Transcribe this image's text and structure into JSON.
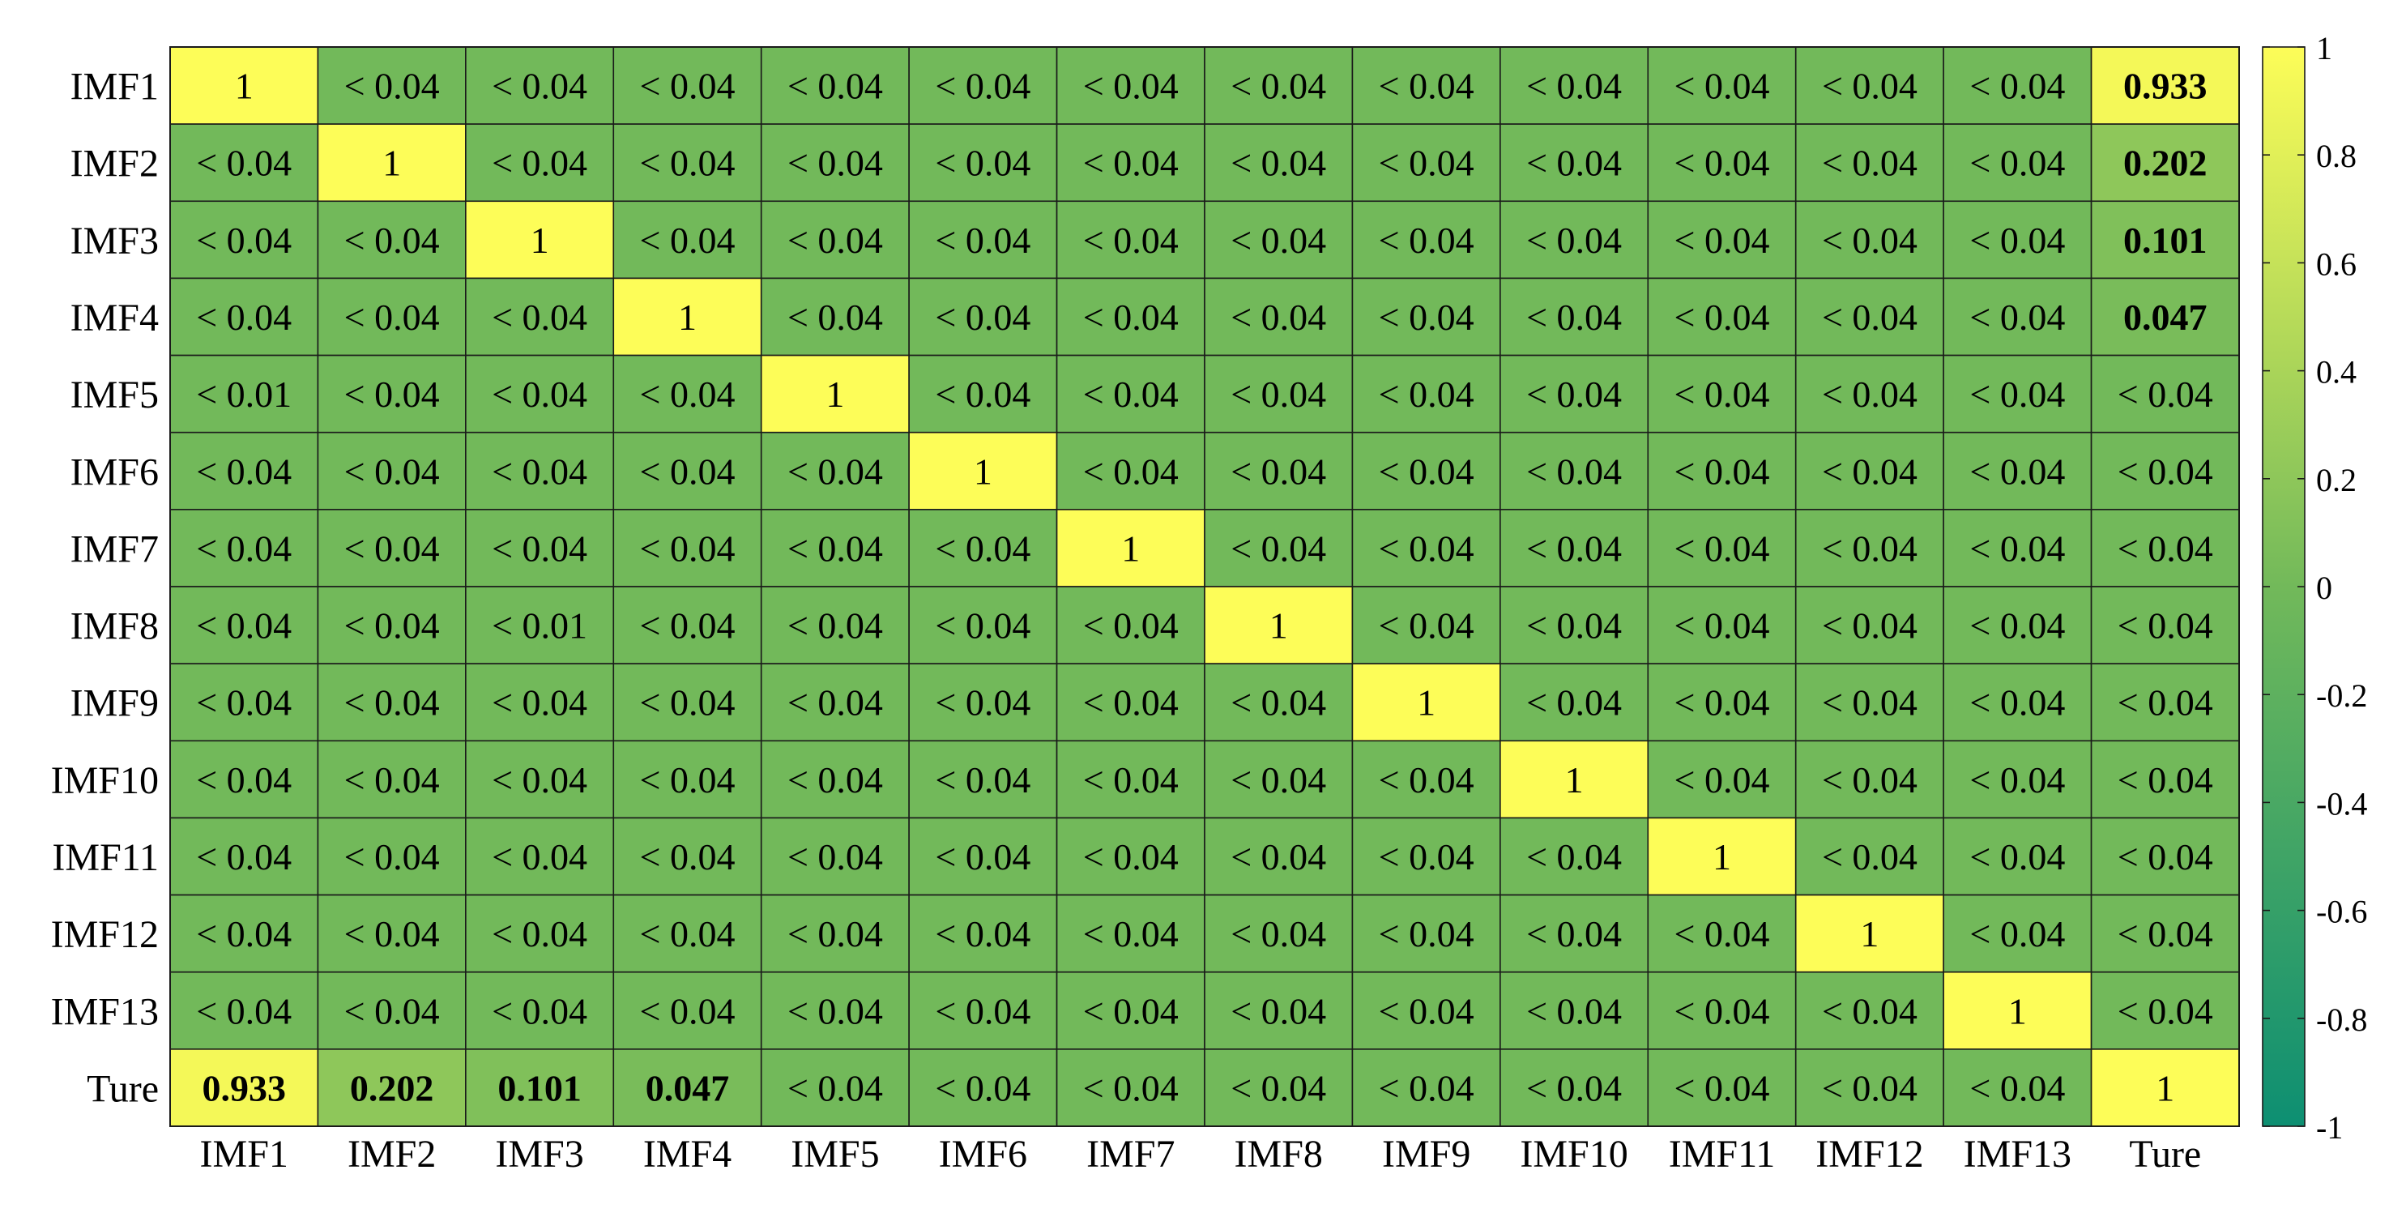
{
  "chart_data": {
    "type": "heatmap",
    "title": "",
    "xlabel": "",
    "ylabel": "",
    "rows": [
      "IMF1",
      "IMF2",
      "IMF3",
      "IMF4",
      "IMF5",
      "IMF6",
      "IMF7",
      "IMF8",
      "IMF9",
      "IMF10",
      "IMF11",
      "IMF12",
      "IMF13",
      "Ture"
    ],
    "columns": [
      "IMF1",
      "IMF2",
      "IMF3",
      "IMF4",
      "IMF5",
      "IMF6",
      "IMF7",
      "IMF8",
      "IMF9",
      "IMF10",
      "IMF11",
      "IMF12",
      "IMF13",
      "Ture"
    ],
    "cell_labels": [
      [
        "1",
        "< 0.04",
        "< 0.04",
        "< 0.04",
        "< 0.04",
        "< 0.04",
        "< 0.04",
        "< 0.04",
        "< 0.04",
        "< 0.04",
        "< 0.04",
        "< 0.04",
        "< 0.04",
        "0.933"
      ],
      [
        "< 0.04",
        "1",
        "< 0.04",
        "< 0.04",
        "< 0.04",
        "< 0.04",
        "< 0.04",
        "< 0.04",
        "< 0.04",
        "< 0.04",
        "< 0.04",
        "< 0.04",
        "< 0.04",
        "0.202"
      ],
      [
        "< 0.04",
        "< 0.04",
        "1",
        "< 0.04",
        "< 0.04",
        "< 0.04",
        "< 0.04",
        "< 0.04",
        "< 0.04",
        "< 0.04",
        "< 0.04",
        "< 0.04",
        "< 0.04",
        "0.101"
      ],
      [
        "< 0.04",
        "< 0.04",
        "< 0.04",
        "1",
        "< 0.04",
        "< 0.04",
        "< 0.04",
        "< 0.04",
        "< 0.04",
        "< 0.04",
        "< 0.04",
        "< 0.04",
        "< 0.04",
        "0.047"
      ],
      [
        "< 0.01",
        "< 0.04",
        "< 0.04",
        "< 0.04",
        "1",
        "< 0.04",
        "< 0.04",
        "< 0.04",
        "< 0.04",
        "< 0.04",
        "< 0.04",
        "< 0.04",
        "< 0.04",
        "< 0.04"
      ],
      [
        "< 0.04",
        "< 0.04",
        "< 0.04",
        "< 0.04",
        "< 0.04",
        "1",
        "< 0.04",
        "< 0.04",
        "< 0.04",
        "< 0.04",
        "< 0.04",
        "< 0.04",
        "< 0.04",
        "< 0.04"
      ],
      [
        "< 0.04",
        "< 0.04",
        "< 0.04",
        "< 0.04",
        "< 0.04",
        "< 0.04",
        "1",
        "< 0.04",
        "< 0.04",
        "< 0.04",
        "< 0.04",
        "< 0.04",
        "< 0.04",
        "< 0.04"
      ],
      [
        "< 0.04",
        "< 0.04",
        "< 0.01",
        "< 0.04",
        "< 0.04",
        "< 0.04",
        "< 0.04",
        "1",
        "< 0.04",
        "< 0.04",
        "< 0.04",
        "< 0.04",
        "< 0.04",
        "< 0.04"
      ],
      [
        "< 0.04",
        "< 0.04",
        "< 0.04",
        "< 0.04",
        "< 0.04",
        "< 0.04",
        "< 0.04",
        "< 0.04",
        "1",
        "< 0.04",
        "< 0.04",
        "< 0.04",
        "< 0.04",
        "< 0.04"
      ],
      [
        "< 0.04",
        "< 0.04",
        "< 0.04",
        "< 0.04",
        "< 0.04",
        "< 0.04",
        "< 0.04",
        "< 0.04",
        "< 0.04",
        "1",
        "< 0.04",
        "< 0.04",
        "< 0.04",
        "< 0.04"
      ],
      [
        "< 0.04",
        "< 0.04",
        "< 0.04",
        "< 0.04",
        "< 0.04",
        "< 0.04",
        "< 0.04",
        "< 0.04",
        "< 0.04",
        "< 0.04",
        "1",
        "< 0.04",
        "< 0.04",
        "< 0.04"
      ],
      [
        "< 0.04",
        "< 0.04",
        "< 0.04",
        "< 0.04",
        "< 0.04",
        "< 0.04",
        "< 0.04",
        "< 0.04",
        "< 0.04",
        "< 0.04",
        "< 0.04",
        "1",
        "< 0.04",
        "< 0.04"
      ],
      [
        "< 0.04",
        "< 0.04",
        "< 0.04",
        "< 0.04",
        "< 0.04",
        "< 0.04",
        "< 0.04",
        "< 0.04",
        "< 0.04",
        "< 0.04",
        "< 0.04",
        "< 0.04",
        "1",
        "< 0.04"
      ],
      [
        "0.933",
        "0.202",
        "0.101",
        "0.047",
        "< 0.04",
        "< 0.04",
        "< 0.04",
        "< 0.04",
        "< 0.04",
        "< 0.04",
        "< 0.04",
        "< 0.04",
        "< 0.04",
        "1"
      ]
    ],
    "color_values": [
      [
        1,
        0,
        0,
        0,
        0,
        0,
        0,
        0,
        0,
        0,
        0,
        0,
        0,
        0.933
      ],
      [
        0,
        1,
        0,
        0,
        0,
        0,
        0,
        0,
        0,
        0,
        0,
        0,
        0,
        0.202
      ],
      [
        0,
        0,
        1,
        0,
        0,
        0,
        0,
        0,
        0,
        0,
        0,
        0,
        0,
        0.101
      ],
      [
        0,
        0,
        0,
        1,
        0,
        0,
        0,
        0,
        0,
        0,
        0,
        0,
        0,
        0.047
      ],
      [
        0,
        0,
        0,
        0,
        1,
        0,
        0,
        0,
        0,
        0,
        0,
        0,
        0,
        0
      ],
      [
        0,
        0,
        0,
        0,
        0,
        1,
        0,
        0,
        0,
        0,
        0,
        0,
        0,
        0
      ],
      [
        0,
        0,
        0,
        0,
        0,
        0,
        1,
        0,
        0,
        0,
        0,
        0,
        0,
        0
      ],
      [
        0,
        0,
        0,
        0,
        0,
        0,
        0,
        1,
        0,
        0,
        0,
        0,
        0,
        0
      ],
      [
        0,
        0,
        0,
        0,
        0,
        0,
        0,
        0,
        1,
        0,
        0,
        0,
        0,
        0
      ],
      [
        0,
        0,
        0,
        0,
        0,
        0,
        0,
        0,
        0,
        1,
        0,
        0,
        0,
        0
      ],
      [
        0,
        0,
        0,
        0,
        0,
        0,
        0,
        0,
        0,
        0,
        1,
        0,
        0,
        0
      ],
      [
        0,
        0,
        0,
        0,
        0,
        0,
        0,
        0,
        0,
        0,
        0,
        1,
        0,
        0
      ],
      [
        0,
        0,
        0,
        0,
        0,
        0,
        0,
        0,
        0,
        0,
        0,
        0,
        1,
        0
      ],
      [
        0.933,
        0.202,
        0.101,
        0.047,
        0,
        0,
        0,
        0,
        0,
        0,
        0,
        0,
        0,
        1
      ]
    ],
    "bold_cells": [
      [
        0,
        13
      ],
      [
        1,
        13
      ],
      [
        2,
        13
      ],
      [
        3,
        13
      ],
      [
        13,
        0
      ],
      [
        13,
        1
      ],
      [
        13,
        2
      ],
      [
        13,
        3
      ]
    ],
    "colorbar": {
      "range": [
        -1,
        1
      ],
      "ticks": [
        "1",
        "0.8",
        "0.6",
        "0.4",
        "0.2",
        "0",
        "-0.2",
        "-0.4",
        "-0.6",
        "-0.8",
        "-1"
      ],
      "colormap": [
        "#0d8f72",
        "#72b95a",
        "#fdfd58"
      ]
    },
    "grid": true
  }
}
